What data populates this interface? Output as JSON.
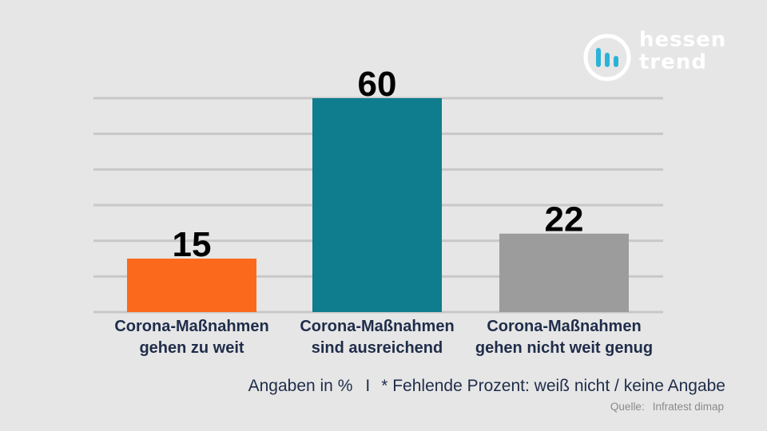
{
  "brand": {
    "line1": "hessen",
    "line2": "trend",
    "colors": {
      "ring": "#ffffff",
      "bars": "#2ab3d6"
    }
  },
  "chart_data": {
    "type": "bar",
    "categories": [
      [
        "Corona-Maßnahmen",
        "gehen zu weit"
      ],
      [
        "Corona-Maßnahmen",
        "sind ausreichend"
      ],
      [
        "Corona-Maßnahmen",
        "gehen nicht weit genug"
      ]
    ],
    "values": [
      15,
      60,
      22
    ],
    "colors": [
      "#fb6a1c",
      "#0f7d8e",
      "#9c9c9c"
    ],
    "ylim": [
      0,
      60
    ],
    "grid": true,
    "grid_color": "#c8c8c8",
    "label_color": "#1f2d4a"
  },
  "footer": {
    "units": "Angaben in %",
    "separator": "I",
    "note": "* Fehlende Prozent: weiß nicht / keine Angabe",
    "source_label": "Quelle:",
    "source_value": "Infratest dimap"
  }
}
